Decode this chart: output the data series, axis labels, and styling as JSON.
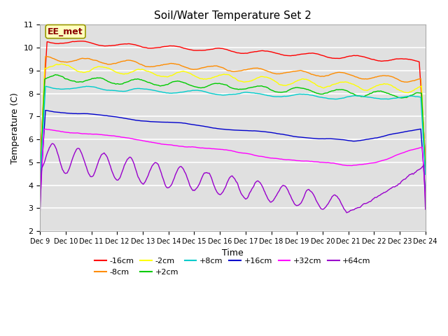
{
  "title": "Soil/Water Temperature Set 2",
  "xlabel": "Time",
  "ylabel": "Temperature (C)",
  "xlim": [
    0,
    15
  ],
  "ylim": [
    2.0,
    11.0
  ],
  "yticks": [
    2.0,
    3.0,
    4.0,
    5.0,
    6.0,
    7.0,
    8.0,
    9.0,
    10.0,
    11.0
  ],
  "xtick_labels": [
    "Dec 9",
    "Dec 10",
    "Dec 11",
    "Dec 12",
    "Dec 13",
    "Dec 14",
    "Dec 15",
    "Dec 16",
    "Dec 17",
    "Dec 18",
    "Dec 19",
    "Dec 20",
    "Dec 21",
    "Dec 22",
    "Dec 23",
    "Dec 24"
  ],
  "plot_bg": "#e0e0e0",
  "fig_bg": "#ffffff",
  "grid_color": "#ffffff",
  "annotation_text": "EE_met",
  "annotation_color": "#8b0000",
  "annotation_bg": "#ffffc0",
  "annotation_edge": "#999900",
  "series": [
    {
      "label": "-16cm",
      "color": "#ff0000"
    },
    {
      "label": "-8cm",
      "color": "#ff8c00"
    },
    {
      "label": "-2cm",
      "color": "#ffff00"
    },
    {
      "label": "+2cm",
      "color": "#00cc00"
    },
    {
      "label": "+8cm",
      "color": "#00cccc"
    },
    {
      "label": "+16cm",
      "color": "#0000cc"
    },
    {
      "label": "+32cm",
      "color": "#ff00ff"
    },
    {
      "label": "+64cm",
      "color": "#9900cc"
    }
  ]
}
